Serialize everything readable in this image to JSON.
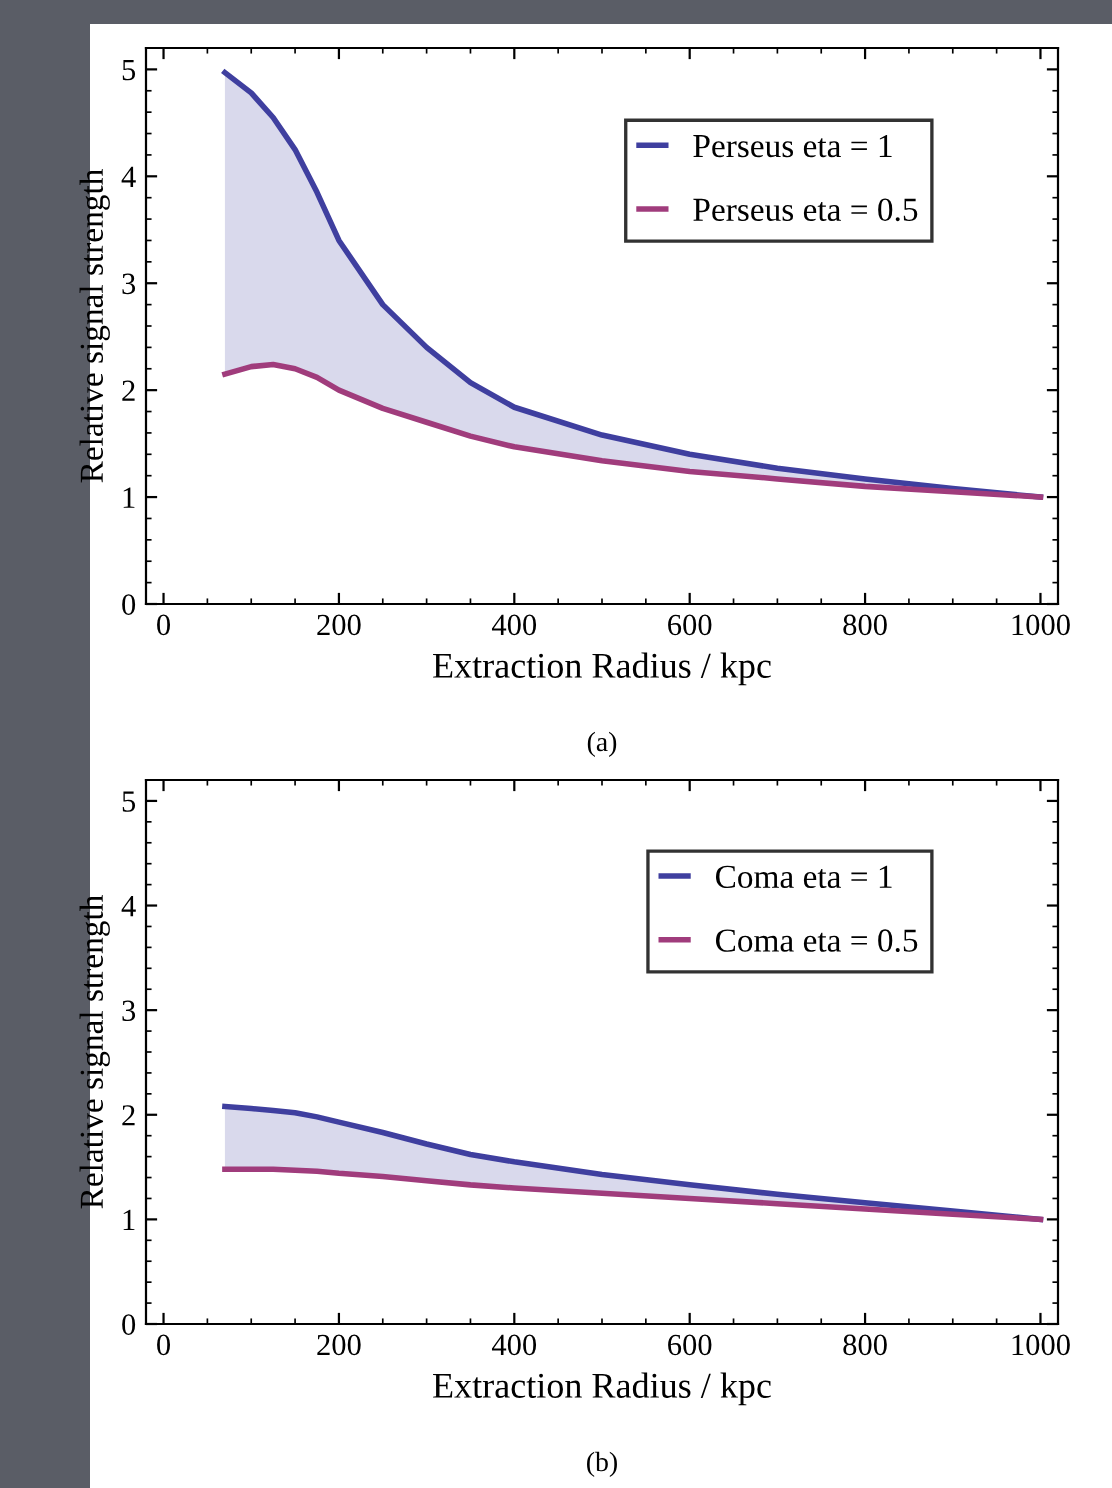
{
  "chart_data": [
    {
      "type": "line",
      "xlabel": "Extraction Radius / kpc",
      "ylabel": "Relative signal strength",
      "annotations": [
        "(a)"
      ],
      "x": [
        70,
        100,
        125,
        150,
        175,
        200,
        250,
        300,
        350,
        400,
        500,
        600,
        700,
        800,
        900,
        1000
      ],
      "series": [
        {
          "name": "Perseus eta = 1",
          "color": "#3f3f9f",
          "values": [
            4.97,
            4.78,
            4.55,
            4.25,
            3.85,
            3.4,
            2.8,
            2.4,
            2.07,
            1.84,
            1.58,
            1.4,
            1.27,
            1.17,
            1.08,
            1.0
          ],
          "lower": [
            2.15,
            2.22,
            2.24,
            2.2,
            2.12,
            2.0,
            1.83,
            1.7,
            1.57,
            1.47,
            1.34,
            1.24,
            1.17,
            1.1,
            1.05,
            1.0
          ],
          "upper": [
            4.97,
            4.78,
            4.55,
            4.25,
            3.85,
            3.4,
            2.8,
            2.4,
            2.07,
            1.84,
            1.58,
            1.4,
            1.27,
            1.17,
            1.08,
            1.0
          ]
        },
        {
          "name": "Perseus eta = 0.5",
          "color": "#a03c7c",
          "values": [
            2.15,
            2.22,
            2.24,
            2.2,
            2.12,
            2.0,
            1.83,
            1.7,
            1.57,
            1.47,
            1.34,
            1.24,
            1.17,
            1.1,
            1.05,
            1.0
          ]
        }
      ],
      "xlim": [
        -20,
        1020
      ],
      "ylim": [
        0,
        5.2
      ],
      "xticks": [
        0,
        200,
        400,
        600,
        800,
        1000
      ],
      "yticks": [
        0,
        1,
        2,
        3,
        4,
        5
      ],
      "legend": "top right",
      "grid": false
    },
    {
      "type": "line",
      "xlabel": "Extraction Radius / kpc",
      "ylabel": "Relative signal strength",
      "annotations": [
        "(b)"
      ],
      "x": [
        70,
        100,
        125,
        150,
        175,
        200,
        250,
        300,
        350,
        400,
        500,
        600,
        700,
        800,
        900,
        1000
      ],
      "series": [
        {
          "name": "Coma eta = 1",
          "color": "#3f3f9f",
          "values": [
            2.08,
            2.06,
            2.04,
            2.02,
            1.98,
            1.93,
            1.83,
            1.72,
            1.62,
            1.55,
            1.43,
            1.33,
            1.24,
            1.16,
            1.08,
            1.0
          ],
          "lower": [
            1.48,
            1.48,
            1.48,
            1.47,
            1.46,
            1.44,
            1.41,
            1.37,
            1.33,
            1.3,
            1.25,
            1.2,
            1.15,
            1.1,
            1.05,
            1.0
          ],
          "upper": [
            2.08,
            2.06,
            2.04,
            2.02,
            1.98,
            1.93,
            1.83,
            1.72,
            1.62,
            1.55,
            1.43,
            1.33,
            1.24,
            1.16,
            1.08,
            1.0
          ]
        },
        {
          "name": "Coma eta = 0.5",
          "color": "#a03c7c",
          "values": [
            1.48,
            1.48,
            1.48,
            1.47,
            1.46,
            1.44,
            1.41,
            1.37,
            1.33,
            1.3,
            1.25,
            1.2,
            1.15,
            1.1,
            1.05,
            1.0
          ]
        }
      ],
      "xlim": [
        -20,
        1020
      ],
      "ylim": [
        0,
        5.2
      ],
      "xticks": [
        0,
        200,
        400,
        600,
        800,
        1000
      ],
      "yticks": [
        0,
        1,
        2,
        3,
        4,
        5
      ],
      "legend": "top right",
      "grid": false
    }
  ]
}
